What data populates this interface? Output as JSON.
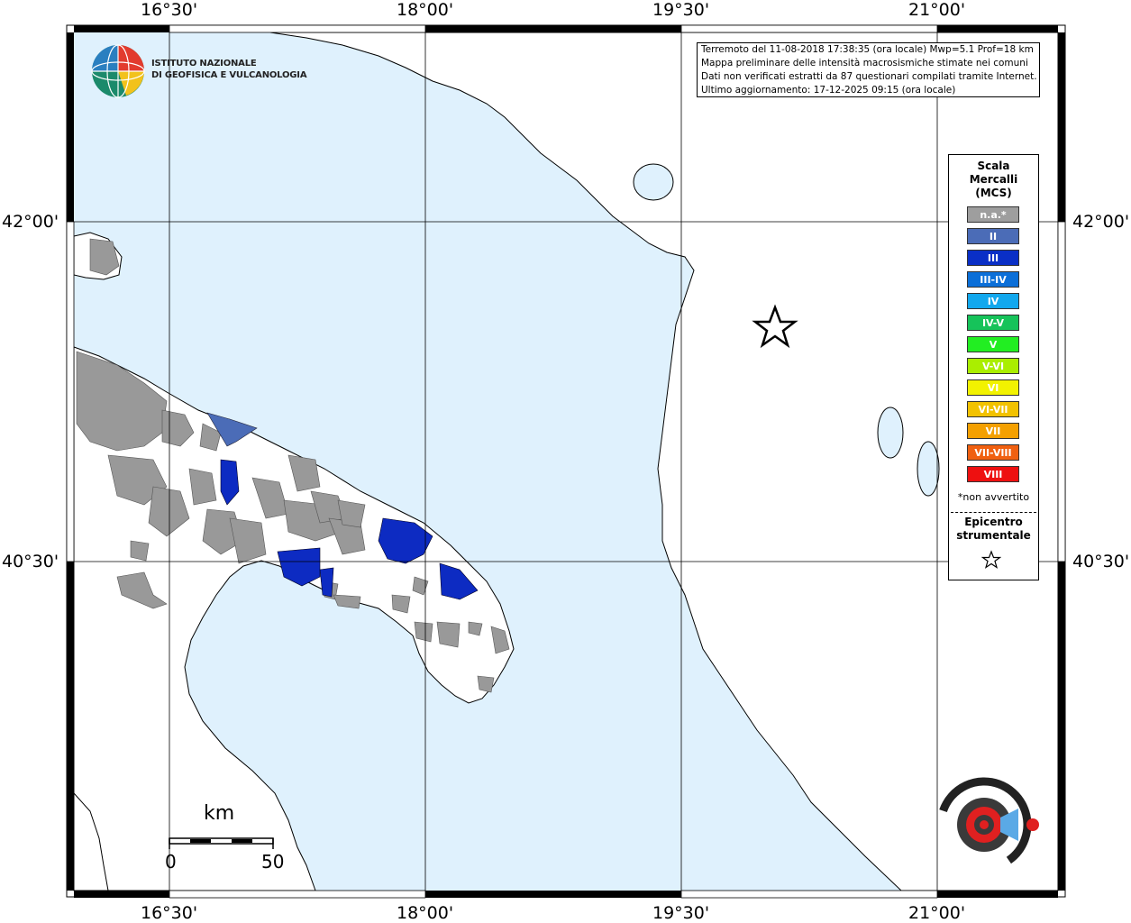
{
  "map": {
    "grid_lon_labels": [
      "16°30'",
      "18°00'",
      "19°30'",
      "21°00'"
    ],
    "grid_lat_labels": [
      "42°00'",
      "40°30'"
    ],
    "colors": {
      "sea": "#dff1fd",
      "land": "#ffffff",
      "grey": "#999999",
      "intensity_II": "#4b6cb7",
      "intensity_III": "#0d2bc2"
    }
  },
  "info": {
    "line1": "Terremoto del 11-08-2018 17:38:35 (ora locale) Mwp=5.1 Prof=18 km",
    "line2": "Mappa preliminare delle intensità macrosismiche stimate nei comuni",
    "line3": "Dati non verificati estratti da 87 questionari compilati tramite Internet.",
    "line4": "Ultimo aggiornamento: 17-12-2025 09:15 (ora locale)"
  },
  "logo": {
    "line1": "ISTITUTO NAZIONALE",
    "line2": "DI GEOFISICA E VULCANOLOGIA"
  },
  "legend": {
    "title1": "Scala",
    "title2": "Mercalli",
    "title3": "(MCS)",
    "items": [
      {
        "label": "n.a.*",
        "color": "#9e9e9e"
      },
      {
        "label": "II",
        "color": "#4b6cb7"
      },
      {
        "label": "III",
        "color": "#0a2fc6"
      },
      {
        "label": "III-IV",
        "color": "#0b6fd8"
      },
      {
        "label": "IV",
        "color": "#12a8ee"
      },
      {
        "label": "IV-V",
        "color": "#16c35a"
      },
      {
        "label": "V",
        "color": "#22ee22"
      },
      {
        "label": "V-VI",
        "color": "#aaee00"
      },
      {
        "label": "VI",
        "color": "#f2f200"
      },
      {
        "label": "VI-VII",
        "color": "#f2c200"
      },
      {
        "label": "VII",
        "color": "#f4a000"
      },
      {
        "label": "VII-VIII",
        "color": "#f06010"
      },
      {
        "label": "VIII",
        "color": "#ee1010"
      }
    ],
    "note": "*non avvertito",
    "epicenter1": "Epicentro",
    "epicenter2": "strumentale"
  },
  "scalebar": {
    "unit": "km",
    "min": "0",
    "max": "50"
  }
}
